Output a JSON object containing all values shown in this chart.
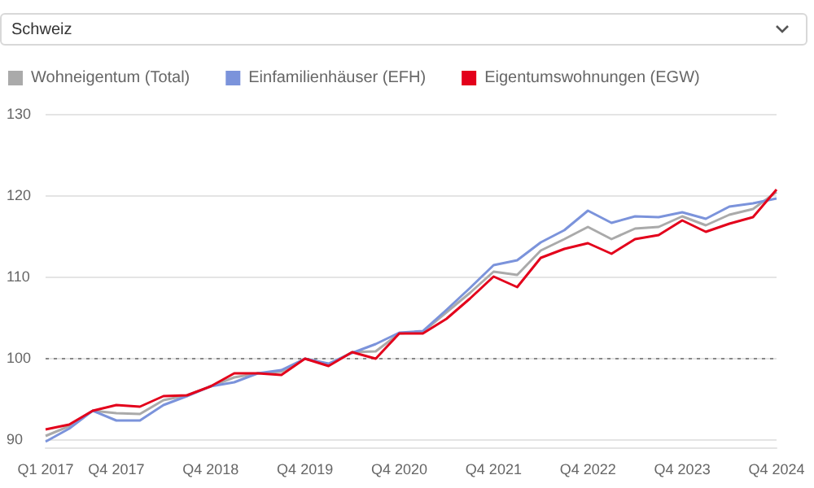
{
  "chart_data": {
    "type": "line",
    "subtitle": "Schweiz",
    "categories": [
      "Q1 2017",
      null,
      null,
      "Q4 2017",
      null,
      null,
      null,
      "Q4 2018",
      null,
      null,
      null,
      "Q4 2019",
      null,
      null,
      null,
      "Q4 2020",
      null,
      null,
      null,
      "Q4 2021",
      null,
      null,
      null,
      "Q4 2022",
      null,
      null,
      null,
      "Q4 2023",
      null,
      null,
      null,
      "Q4 2024"
    ],
    "series": [
      {
        "name": "Wohneigentum (Total)",
        "color": "#aaaaaa",
        "values": [
          90.4,
          91.6,
          93.5,
          93.2,
          93.1,
          94.8,
          95.4,
          96.5,
          97.6,
          98.1,
          98.3,
          99.9,
          99.2,
          100.7,
          100.8,
          103.0,
          103.2,
          105.6,
          108.0,
          110.6,
          110.2,
          113.2,
          114.6,
          116.1,
          114.6,
          115.9,
          116.1,
          117.4,
          116.3,
          117.6,
          118.3,
          120.4
        ]
      },
      {
        "name": "Einfamilienhäuser (EFH)",
        "color": "#7b93db",
        "values": [
          89.7,
          91.3,
          93.5,
          92.3,
          92.3,
          94.2,
          95.3,
          96.5,
          97.0,
          98.1,
          98.5,
          99.9,
          99.3,
          100.6,
          101.7,
          103.1,
          103.3,
          105.9,
          108.6,
          111.4,
          112.0,
          114.2,
          115.7,
          118.1,
          116.6,
          117.4,
          117.3,
          117.9,
          117.1,
          118.6,
          119.0,
          119.6
        ]
      },
      {
        "name": "Eigentumswohnungen (EGW)",
        "color": "#e3001b",
        "values": [
          91.2,
          91.8,
          93.5,
          94.2,
          94.0,
          95.3,
          95.4,
          96.5,
          98.1,
          98.1,
          97.9,
          99.9,
          99.0,
          100.7,
          99.9,
          103.0,
          103.0,
          104.8,
          107.3,
          110.0,
          108.7,
          112.3,
          113.4,
          114.1,
          112.8,
          114.6,
          115.1,
          116.9,
          115.5,
          116.5,
          117.3,
          120.7
        ]
      }
    ],
    "ylim": [
      89,
      130
    ],
    "yticks": [
      90,
      100,
      110,
      120,
      130
    ],
    "grid": "y",
    "legend": "top left",
    "marker": "none",
    "ref_lines": [
      {
        "axis": "y",
        "value": 100,
        "color": "#888888",
        "line_style": "dotted"
      }
    ]
  }
}
